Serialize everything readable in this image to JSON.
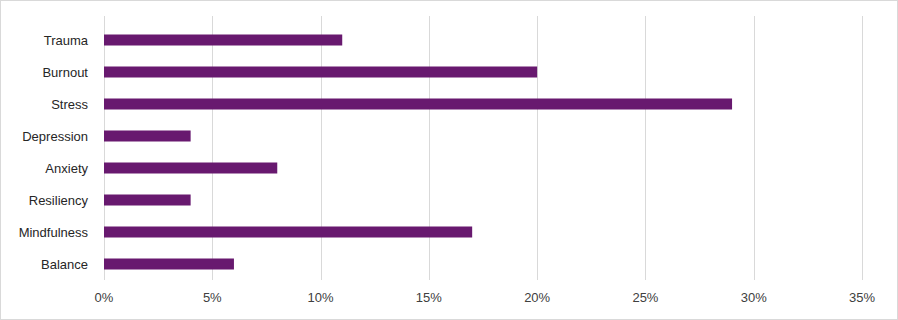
{
  "chart_data": {
    "type": "bar",
    "orientation": "horizontal",
    "categories": [
      "Trauma",
      "Burnout",
      "Stress",
      "Depression",
      "Anxiety",
      "Resiliency",
      "Mindfulness",
      "Balance"
    ],
    "values": [
      11,
      20,
      29,
      4,
      8,
      4,
      17,
      6
    ],
    "color": "#68196f",
    "xlim": [
      0,
      35
    ],
    "xticks": [
      {
        "value": 0,
        "label": "0%"
      },
      {
        "value": 5,
        "label": "5%"
      },
      {
        "value": 10,
        "label": "10%"
      },
      {
        "value": 15,
        "label": "15%"
      },
      {
        "value": 20,
        "label": "20%"
      },
      {
        "value": 25,
        "label": "25%"
      },
      {
        "value": 30,
        "label": "30%"
      },
      {
        "value": 35,
        "label": "35%"
      }
    ],
    "grid": true
  }
}
